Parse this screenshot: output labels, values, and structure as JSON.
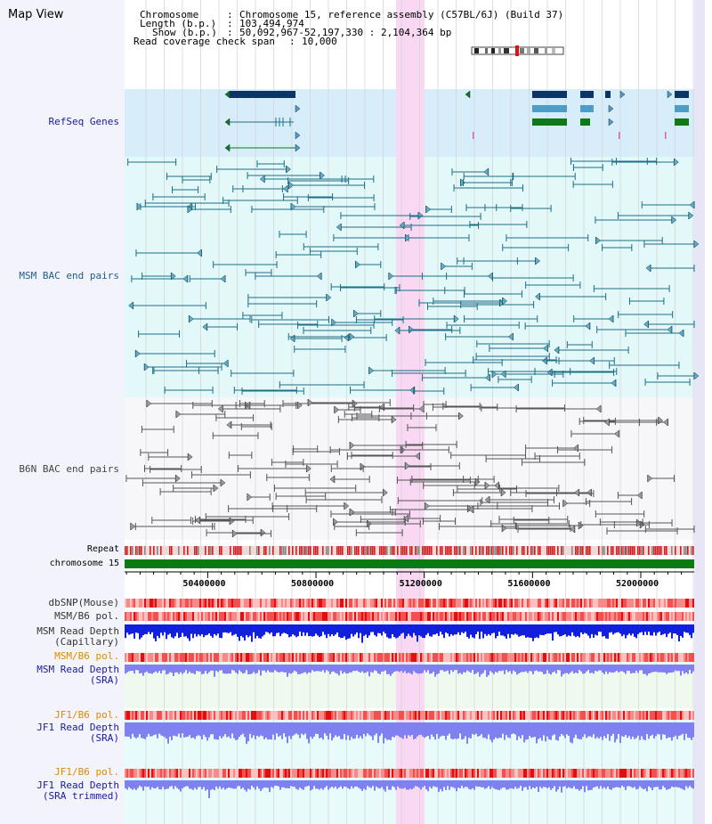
{
  "view": {
    "title": "Map View",
    "info": {
      "chromosome_key": "Chromosome",
      "chromosome_value": "Chromosome 15, reference assembly (C57BL/6J) (Build 37)",
      "length_key": "Length (b.p.)",
      "length_value": "103,494,974",
      "show_key": "Show (b.p.)",
      "show_value": "50,092,967-52,197,330 : 2,104,364 bp",
      "coverage_key": "Read coverage check span",
      "coverage_value": "10,000"
    }
  },
  "tracks": {
    "refseq": "RefSeq Genes",
    "msm_bac": "MSM BAC end pairs",
    "b6n_bac": "B6N BAC end pairs",
    "repeat": "Repeat",
    "chromosome": "chromosome 15",
    "dbsnp": "dbSNP(Mouse)",
    "msm_pol": "MSM/B6 pol.",
    "msm_depth_cap_1": "MSM Read Depth",
    "msm_depth_cap_2": "(Capillary)",
    "msm_pol2": "MSM/B6 pol.",
    "msm_depth_sra_1": "MSM Read Depth",
    "msm_depth_sra_2": "(SRA)",
    "jf1_pol": "JF1/B6 pol.",
    "jf1_depth_sra_1": "JF1 Read Depth",
    "jf1_depth_sra_2": "(SRA)",
    "jf1_pol2": "JF1/B6 pol.",
    "jf1_depth_trim_1": "JF1 Read Depth",
    "jf1_depth_trim_2": "(SRA trimmed)"
  },
  "axis": {
    "ticks": [
      50400000,
      50800000,
      51200000,
      51600000,
      52000000
    ],
    "tick_labels": [
      "50400000",
      "50800000",
      "51200000",
      "51600000",
      "52000000"
    ]
  },
  "colors": {
    "refseq_bg": "#d7eefa",
    "msm_bg": "#e3f8f8",
    "b6n_bg": "#f7f7fa",
    "highlight": "#f8d8f2",
    "refseq_gene_dark": "#0c3466",
    "refseq_gene_mid": "#4f9cc6",
    "refseq_gene_green": "#0d7a16",
    "msm_line": "#1d6e86",
    "b6n_line": "#555555",
    "repeat": "#cc2222",
    "chromosome": "#0a7a12",
    "snp": "#f07070",
    "depth_capillary": "#1020dd",
    "depth_sra": "#8080f0",
    "pol_jf1_label": "#e08a00",
    "label_blue": "#1a1aa0"
  }
}
